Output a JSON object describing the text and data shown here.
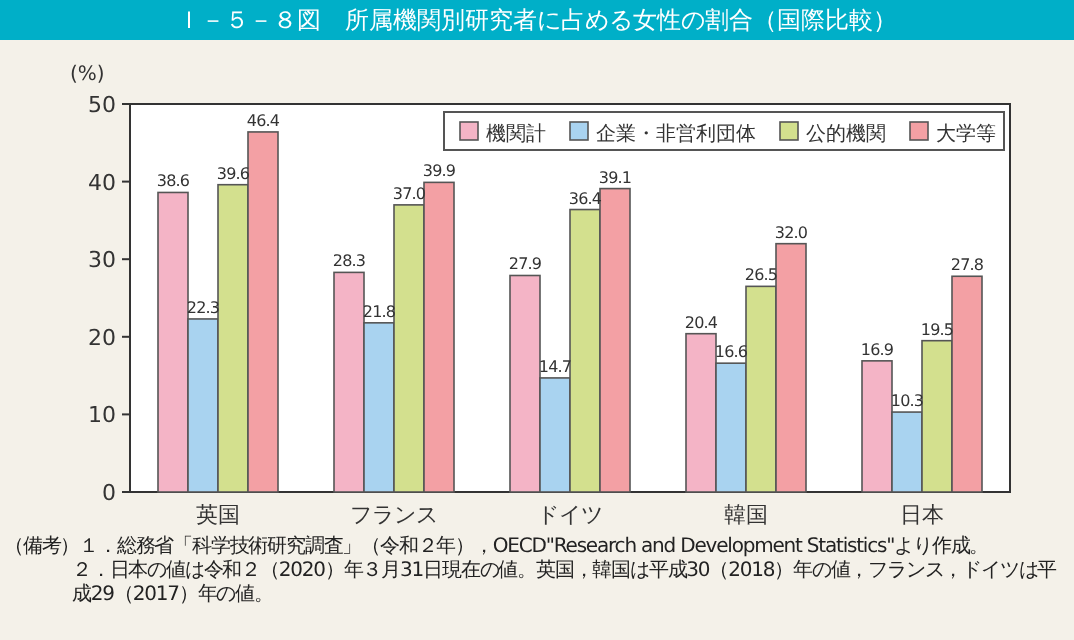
{
  "chart_data": {
    "type": "bar",
    "title": "Ｉ－５－８図　所属機関別研究者に占める女性の割合（国際比較）",
    "ylabel": "(%)",
    "categories": [
      "英国",
      "フランス",
      "ドイツ",
      "韓国",
      "日本"
    ],
    "series": [
      {
        "name": "機関計",
        "color": "#f4b4c6",
        "values": [
          38.6,
          28.3,
          27.9,
          20.4,
          16.9
        ],
        "value_labels": [
          "38.6",
          "28.3",
          "27.9",
          "20.4",
          "16.9"
        ]
      },
      {
        "name": "企業・非営利団体",
        "color": "#a9d3f0",
        "values": [
          22.3,
          21.8,
          14.7,
          16.6,
          10.3
        ],
        "value_labels": [
          "22.3",
          "21.8",
          "14.7",
          "16.6",
          "10.3"
        ]
      },
      {
        "name": "公的機関",
        "color": "#d3e08e",
        "values": [
          39.6,
          37.0,
          36.4,
          26.5,
          19.5
        ],
        "value_labels": [
          "39.6",
          "37.0",
          "36.4",
          "26.5",
          "19.5"
        ]
      },
      {
        "name": "大学等",
        "color": "#f3a0a4",
        "values": [
          46.4,
          39.9,
          39.1,
          32.0,
          27.8
        ],
        "value_labels": [
          "46.4",
          "39.9",
          "39.1",
          "32.0",
          "27.8"
        ]
      }
    ],
    "ylim": [
      0,
      50
    ],
    "yticks": [
      0,
      10,
      20,
      30,
      40,
      50
    ],
    "grid": false,
    "legend": "top right",
    "annotations": [
      "（備考）１．総務省「科学技術研究調査」（令和２年），OECD\"Research and Development Statistics\"より作成。",
      "２．日本の値は令和２（2020）年３月31日現在の値。英国，韓国は平成30（2018）年の値，フランス，ドイツは平成29（2017）年の値。"
    ]
  }
}
